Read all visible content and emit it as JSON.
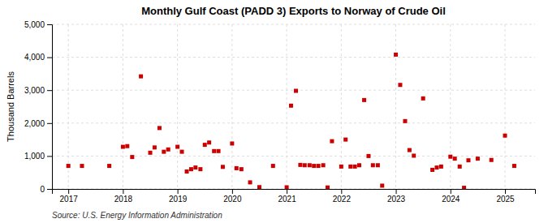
{
  "chart_data": {
    "type": "scatter",
    "title": "Monthly Gulf Coast (PADD 3) Exports to Norway of Crude Oil",
    "ylabel": "Thousand Barrels",
    "annotations": [
      "Source: U.S. Energy Information Administration"
    ],
    "color": "#cc0000",
    "marker": "square",
    "grid": true,
    "xlim": [
      2016.7,
      2025.55
    ],
    "xticks": [
      2017,
      2018,
      2019,
      2020,
      2021,
      2022,
      2023,
      2024,
      2025
    ],
    "ylim": [
      0,
      5000
    ],
    "yticks": [
      0,
      {
        "value": 1000,
        "label": "1,000"
      },
      {
        "value": 2000,
        "label": "2,000"
      },
      {
        "value": 3000,
        "label": "3,000"
      },
      {
        "value": 4000,
        "label": "4,000"
      },
      {
        "value": 5000,
        "label": "5,000"
      }
    ],
    "x": [
      2017.0,
      2017.25,
      2017.75,
      2018.0,
      2018.08,
      2018.17,
      2018.33,
      2018.5,
      2018.58,
      2018.67,
      2018.75,
      2018.83,
      2019.0,
      2019.08,
      2019.17,
      2019.25,
      2019.33,
      2019.42,
      2019.5,
      2019.58,
      2019.67,
      2019.75,
      2019.83,
      2020.0,
      2020.08,
      2020.17,
      2020.33,
      2020.5,
      2020.75,
      2021.0,
      2021.08,
      2021.17,
      2021.25,
      2021.33,
      2021.42,
      2021.5,
      2021.58,
      2021.67,
      2021.75,
      2021.83,
      2022.0,
      2022.08,
      2022.17,
      2022.25,
      2022.33,
      2022.42,
      2022.5,
      2022.58,
      2022.67,
      2022.75,
      2023.0,
      2023.08,
      2023.17,
      2023.25,
      2023.33,
      2023.5,
      2023.67,
      2023.75,
      2023.83,
      2024.0,
      2024.08,
      2024.17,
      2024.25,
      2024.33,
      2024.5,
      2024.75,
      2025.0,
      2025.17
    ],
    "values": [
      700,
      700,
      700,
      1280,
      1300,
      970,
      3420,
      1100,
      1260,
      1850,
      1130,
      1200,
      1280,
      1130,
      530,
      600,
      650,
      600,
      1340,
      1410,
      1150,
      1150,
      670,
      1380,
      630,
      600,
      200,
      55,
      700,
      50,
      2530,
      2980,
      730,
      720,
      720,
      700,
      700,
      720,
      45,
      1450,
      680,
      1500,
      680,
      680,
      720,
      2700,
      1000,
      720,
      720,
      100,
      4080,
      3160,
      2060,
      1180,
      1010,
      2750,
      580,
      650,
      680,
      980,
      920,
      680,
      35,
      870,
      920,
      880,
      1620,
      700
    ]
  }
}
